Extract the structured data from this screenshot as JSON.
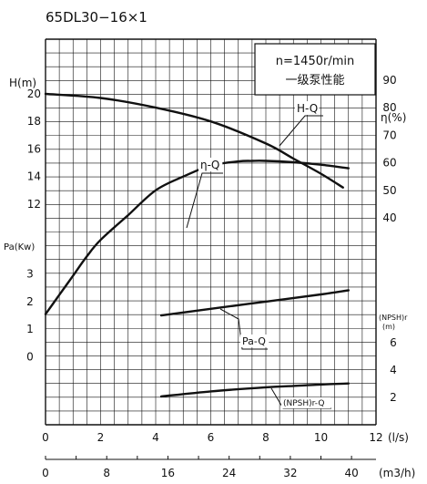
{
  "chart_data": {
    "type": "line",
    "title": "65DL30−16×1",
    "info_box": [
      "n=1450r/min",
      "一级泵性能"
    ],
    "x_axis": {
      "label": "(l/s)",
      "lim": [
        0,
        12
      ],
      "ticks": [
        "0",
        "2",
        "4",
        "6",
        "8",
        "10",
        "12"
      ]
    },
    "x2_axis": {
      "label": "(m3/h)",
      "lim": [
        0,
        43.2
      ],
      "ticks": [
        "0",
        "8",
        "16",
        "24",
        "32",
        "40"
      ]
    },
    "y_head": {
      "label": "H(m)",
      "lim": [
        10,
        20
      ],
      "ticks": [
        "20",
        "18",
        "16",
        "14",
        "12"
      ]
    },
    "y_power": {
      "label": "Pa(Kw)",
      "lim": [
        0,
        3
      ],
      "ticks": [
        "3",
        "2",
        "1",
        "0"
      ]
    },
    "y_eff": {
      "label": "η(%)",
      "lim": [
        40,
        90
      ],
      "ticks": [
        "90",
        "80",
        "70",
        "60",
        "50",
        "40"
      ]
    },
    "y_npsh": {
      "label": "(NPSH)r",
      "unit": "(m)",
      "lim": [
        2,
        6
      ],
      "ticks": [
        "6",
        "4",
        "2"
      ]
    },
    "series": [
      {
        "name": "H-Q",
        "axis": "head",
        "x": [
          0,
          2,
          4,
          6,
          8,
          9,
          10,
          10.8
        ],
        "y": [
          20,
          19.7,
          19.0,
          18.0,
          16.4,
          15.3,
          14.2,
          13.2
        ]
      },
      {
        "name": "η-Q",
        "axis": "eff",
        "x": [
          0,
          0.5,
          1,
          1.5,
          2,
          3,
          4,
          5,
          6,
          7,
          7.5,
          8,
          9,
          10,
          11
        ],
        "y": [
          5,
          12,
          19,
          26,
          32,
          41,
          50,
          55,
          59,
          60.5,
          60.7,
          60.7,
          60.2,
          59.3,
          58
        ]
      },
      {
        "name": "Pa-Q",
        "axis": "power",
        "x": [
          4.2,
          6,
          8,
          10,
          11
        ],
        "y": [
          1.5,
          1.74,
          2.0,
          2.26,
          2.41
        ]
      },
      {
        "name": "(NPSH)r-Q",
        "axis": "npsh",
        "x": [
          4.2,
          6,
          8,
          9,
          10,
          11
        ],
        "y": [
          2.07,
          2.44,
          2.74,
          2.84,
          2.94,
          3.02
        ]
      }
    ]
  }
}
